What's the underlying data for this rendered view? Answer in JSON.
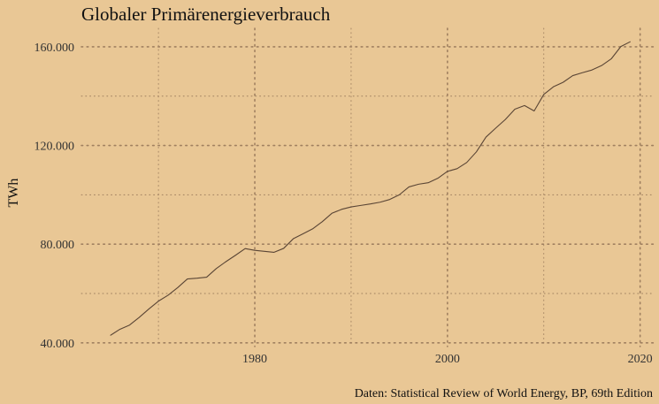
{
  "chart_data": {
    "type": "line",
    "title": "Globaler Primärenergieverbrauch",
    "xlabel": "",
    "ylabel": "TWh",
    "caption": "Daten: Statistical Review of World Energy, BP, 69th Edition",
    "xlim": [
      1962,
      2021.5
    ],
    "ylim": [
      38500,
      167500
    ],
    "x_ticks": [
      1980,
      2000,
      2020
    ],
    "x_tick_labels": [
      "1980",
      "2000",
      "2020"
    ],
    "x_minor": [
      1970,
      1990,
      2010
    ],
    "y_ticks": [
      40000,
      80000,
      120000,
      160000
    ],
    "y_tick_labels": [
      "40.000",
      "80.000",
      "120.000",
      "160.000"
    ],
    "y_minor": [
      60000,
      100000,
      140000
    ],
    "grid": true,
    "legend": "none",
    "series": [
      {
        "color": "#5a4535",
        "x": [
          1965,
          1966,
          1967,
          1968,
          1969,
          1970,
          1971,
          1972,
          1973,
          1974,
          1975,
          1976,
          1977,
          1978,
          1979,
          1980,
          1981,
          1982,
          1983,
          1984,
          1985,
          1986,
          1987,
          1988,
          1989,
          1990,
          1991,
          1992,
          1993,
          1994,
          1995,
          1996,
          1997,
          1998,
          1999,
          2000,
          2001,
          2002,
          2003,
          2004,
          2005,
          2006,
          2007,
          2008,
          2009,
          2010,
          2011,
          2012,
          2013,
          2014,
          2015,
          2016,
          2017,
          2018,
          2019
        ],
        "values": [
          43000,
          45500,
          47200,
          50300,
          53700,
          56900,
          59300,
          62400,
          65900,
          66200,
          66600,
          70100,
          72900,
          75500,
          78200,
          77500,
          77100,
          76700,
          78300,
          82200,
          84200,
          86200,
          89100,
          92500,
          94100,
          95100,
          95700,
          96300,
          97000,
          98100,
          100000,
          103200,
          104300,
          104900,
          106700,
          109500,
          110600,
          113100,
          117400,
          123400,
          127000,
          130500,
          134700,
          136200,
          134000,
          140700,
          143800,
          145600,
          148300,
          149500,
          150600,
          152400,
          155100,
          160100,
          162100
        ]
      }
    ]
  }
}
